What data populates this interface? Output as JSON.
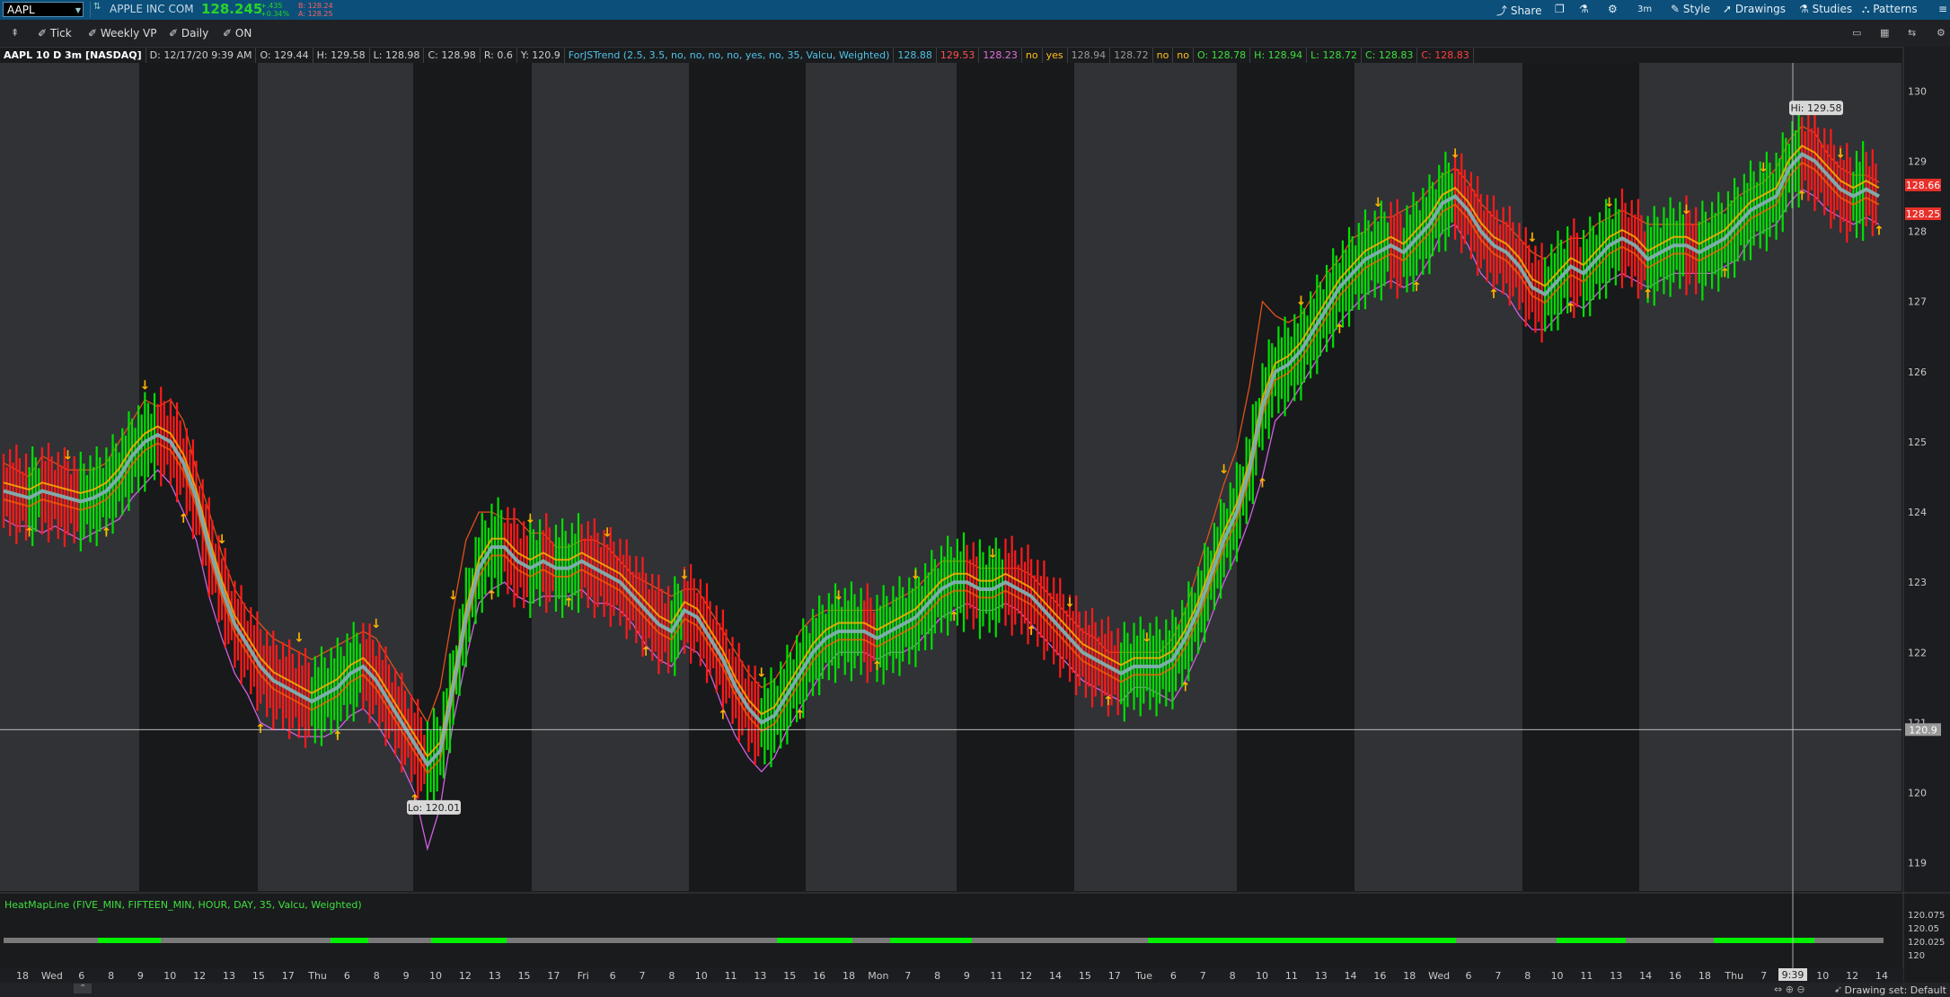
{
  "header": {
    "symbol": "AAPL",
    "company": "APPLE INC COM",
    "last_price": "128.245",
    "change": "+.435",
    "change_pct": "+0.34%",
    "bid": "B: 128.24",
    "ask": "A: 128.25",
    "buttons": [
      "Share",
      "Studies",
      "Patterns",
      "Drawings",
      "Style",
      "3m"
    ]
  },
  "toolbar": {
    "items": [
      "Tick",
      "Weekly VP",
      "Daily",
      "ON"
    ]
  },
  "info": {
    "items": [
      {
        "text": "AAPL 10 D 3m [NASDAQ]",
        "color": "#ffffff"
      },
      {
        "text": "D: 12/17/20 9:39 AM",
        "color": "#cfcfcf"
      },
      {
        "text": "O: 129.44",
        "color": "#cfcfcf"
      },
      {
        "text": "H: 129.58",
        "color": "#cfcfcf"
      },
      {
        "text": "L: 128.98",
        "color": "#cfcfcf"
      },
      {
        "text": "C: 128.98",
        "color": "#cfcfcf"
      },
      {
        "text": "R: 0.6",
        "color": "#cfcfcf"
      },
      {
        "text": "Y: 120.9",
        "color": "#cfcfcf"
      },
      {
        "text": "ForJSTrend (2.5, 3.5, no, no, no, no, yes, no, 35, Valcu, Weighted)",
        "color": "#4fc3e8"
      },
      {
        "text": "128.88",
        "color": "#4fc3e8"
      },
      {
        "text": "129.53",
        "color": "#ff5050"
      },
      {
        "text": "128.23",
        "color": "#e070e0"
      },
      {
        "text": "no",
        "color": "#ffc21a"
      },
      {
        "text": "yes",
        "color": "#ffc21a"
      },
      {
        "text": "128.94",
        "color": "#9a9a9a"
      },
      {
        "text": "128.72",
        "color": "#9a9a9a"
      },
      {
        "text": "no",
        "color": "#ffc21a"
      },
      {
        "text": "no",
        "color": "#ffc21a"
      },
      {
        "text": "O: 128.78",
        "color": "#3ee03e"
      },
      {
        "text": "H: 128.94",
        "color": "#3ee03e"
      },
      {
        "text": "L: 128.72",
        "color": "#3ee03e"
      },
      {
        "text": "C: 128.83",
        "color": "#3ee03e"
      },
      {
        "text": "C: 128.83",
        "color": "#ff4040"
      }
    ]
  },
  "chart_data": {
    "type": "line",
    "ylim": [
      118.6,
      130.4
    ],
    "yticks": [
      119,
      120,
      121,
      122,
      123,
      124,
      125,
      126,
      127,
      128,
      129,
      130
    ],
    "price_labels": [
      {
        "text": "128.66",
        "value": 128.66,
        "color": "#e8302a"
      },
      {
        "text": "128.25",
        "value": 128.25,
        "color": "#e8302a"
      },
      {
        "text": "120.9",
        "value": 120.9,
        "color": "#9a9a9a"
      }
    ],
    "crosshair_price": 120.9,
    "annotations": [
      {
        "text": "Hi: 129.58",
        "value": 129.58
      },
      {
        "text": "Lo: 120.01",
        "value": 120.01
      }
    ],
    "days": [
      "Wed",
      "Thu",
      "Fri",
      "Mon",
      "Tue",
      "Wed",
      "Thu"
    ],
    "x_ticks": [
      "18",
      "Wed",
      "6",
      "8",
      "9",
      "10",
      "12",
      "13",
      "15",
      "17",
      "Thu",
      "6",
      "8",
      "9",
      "10",
      "12",
      "13",
      "15",
      "17",
      "Fri",
      "6",
      "7",
      "8",
      "10",
      "11",
      "13",
      "15",
      "16",
      "18",
      "Mon",
      "7",
      "8",
      "9",
      "11",
      "12",
      "14",
      "15",
      "17",
      "Tue",
      "6",
      "7",
      "8",
      "10",
      "11",
      "13",
      "14",
      "16",
      "18",
      "Wed",
      "6",
      "7",
      "8",
      "10",
      "11",
      "13",
      "14",
      "16",
      "18",
      "Thu",
      "7",
      "8",
      "10",
      "12",
      "14"
    ],
    "x_time_label": "9:39",
    "close": [
      124.3,
      124.25,
      124.2,
      124.3,
      124.25,
      124.2,
      124.15,
      124.2,
      124.3,
      124.5,
      124.8,
      125.0,
      125.1,
      125.0,
      124.7,
      124.2,
      123.5,
      122.9,
      122.4,
      122.1,
      121.8,
      121.6,
      121.5,
      121.4,
      121.3,
      121.4,
      121.5,
      121.7,
      121.8,
      121.6,
      121.3,
      121.0,
      120.7,
      120.4,
      120.6,
      121.5,
      122.5,
      123.2,
      123.5,
      123.5,
      123.3,
      123.2,
      123.3,
      123.2,
      123.2,
      123.3,
      123.2,
      123.1,
      123.0,
      122.8,
      122.6,
      122.4,
      122.3,
      122.6,
      122.5,
      122.2,
      121.9,
      121.5,
      121.2,
      121.0,
      121.1,
      121.4,
      121.7,
      122.0,
      122.2,
      122.3,
      122.3,
      122.3,
      122.2,
      122.3,
      122.4,
      122.5,
      122.7,
      122.9,
      123.0,
      123.0,
      122.9,
      122.9,
      123.0,
      122.9,
      122.8,
      122.6,
      122.4,
      122.2,
      122.0,
      121.9,
      121.8,
      121.7,
      121.8,
      121.8,
      121.8,
      121.9,
      122.2,
      122.6,
      123.1,
      123.6,
      124.0,
      124.6,
      125.5,
      126.0,
      126.1,
      126.3,
      126.6,
      126.9,
      127.2,
      127.4,
      127.6,
      127.7,
      127.8,
      127.7,
      127.9,
      128.1,
      128.4,
      128.5,
      128.3,
      128.0,
      127.8,
      127.7,
      127.5,
      127.2,
      127.1,
      127.3,
      127.5,
      127.4,
      127.6,
      127.8,
      127.9,
      127.8,
      127.6,
      127.7,
      127.8,
      127.8,
      127.7,
      127.8,
      127.9,
      128.1,
      128.3,
      128.4,
      128.5,
      128.9,
      129.1,
      129.0,
      128.8,
      128.6,
      128.5,
      128.6,
      128.5
    ],
    "upper_band": [
      124.7,
      124.6,
      124.5,
      124.8,
      124.7,
      124.6,
      124.6,
      124.6,
      124.7,
      125.0,
      125.3,
      125.6,
      125.5,
      125.6,
      125.3,
      124.6,
      124.0,
      123.4,
      122.9,
      122.6,
      122.4,
      122.2,
      122.1,
      122.0,
      121.9,
      122.0,
      122.1,
      122.2,
      122.3,
      122.2,
      121.9,
      121.6,
      121.3,
      121.0,
      121.5,
      122.6,
      123.6,
      124.0,
      124.0,
      123.9,
      123.9,
      123.7,
      123.7,
      123.5,
      123.5,
      123.6,
      123.6,
      123.5,
      123.3,
      123.1,
      123.0,
      122.9,
      122.8,
      122.9,
      122.9,
      122.6,
      122.3,
      122.0,
      121.7,
      121.5,
      121.6,
      121.9,
      122.3,
      122.5,
      122.6,
      122.6,
      122.6,
      122.6,
      122.6,
      122.7,
      122.8,
      122.9,
      123.1,
      123.3,
      123.3,
      123.3,
      123.2,
      123.2,
      123.2,
      123.2,
      123.1,
      122.9,
      122.7,
      122.5,
      122.3,
      122.2,
      122.0,
      122.0,
      122.0,
      122.0,
      122.0,
      122.2,
      122.6,
      123.2,
      123.8,
      124.4,
      124.9,
      125.8,
      127.0,
      126.8,
      126.7,
      126.8,
      127.1,
      127.4,
      127.6,
      127.9,
      128.0,
      128.2,
      128.2,
      128.3,
      128.4,
      128.6,
      128.8,
      128.9,
      128.7,
      128.4,
      128.2,
      128.1,
      127.9,
      127.7,
      127.6,
      127.8,
      127.9,
      127.9,
      128.1,
      128.2,
      128.3,
      128.2,
      128.1,
      128.1,
      128.1,
      128.1,
      128.1,
      128.2,
      128.3,
      128.5,
      128.6,
      128.7,
      128.9,
      129.3,
      129.5,
      129.4,
      129.1,
      128.9,
      128.8,
      128.8,
      128.7
    ],
    "lower_band": [
      123.9,
      123.8,
      123.8,
      123.7,
      123.8,
      123.7,
      123.6,
      123.7,
      123.8,
      123.9,
      124.2,
      124.4,
      124.6,
      124.4,
      124.0,
      123.6,
      122.8,
      122.2,
      121.7,
      121.4,
      121.0,
      120.9,
      120.9,
      120.8,
      120.8,
      120.8,
      120.9,
      121.1,
      121.2,
      121.0,
      120.7,
      120.4,
      120.0,
      119.2,
      119.8,
      121.0,
      121.9,
      122.7,
      122.9,
      123.0,
      122.8,
      122.7,
      122.8,
      122.8,
      122.8,
      122.9,
      122.7,
      122.7,
      122.6,
      122.4,
      122.1,
      121.9,
      121.8,
      122.1,
      122.0,
      121.7,
      121.2,
      120.8,
      120.5,
      120.3,
      120.5,
      120.9,
      121.2,
      121.5,
      121.8,
      122.0,
      122.0,
      122.0,
      121.9,
      122.0,
      122.0,
      122.1,
      122.3,
      122.5,
      122.6,
      122.7,
      122.6,
      122.6,
      122.7,
      122.6,
      122.4,
      122.2,
      122.0,
      121.8,
      121.6,
      121.5,
      121.4,
      121.3,
      121.5,
      121.5,
      121.4,
      121.3,
      121.6,
      122.0,
      122.5,
      123.0,
      123.4,
      123.9,
      124.5,
      125.3,
      125.5,
      125.8,
      126.1,
      126.4,
      126.7,
      126.9,
      127.1,
      127.2,
      127.3,
      127.2,
      127.3,
      127.6,
      128.0,
      128.1,
      127.8,
      127.4,
      127.2,
      127.1,
      126.8,
      126.6,
      126.6,
      126.8,
      127.0,
      126.9,
      127.1,
      127.3,
      127.4,
      127.3,
      127.2,
      127.3,
      127.4,
      127.4,
      127.4,
      127.4,
      127.5,
      127.6,
      127.9,
      128.0,
      128.1,
      128.4,
      128.6,
      128.5,
      128.3,
      128.2,
      128.1,
      128.2,
      128.1
    ],
    "heatmap_ticks": [
      "120.075",
      "120.05",
      "120.025",
      "120"
    ]
  },
  "lower_study": {
    "label": "HeatMapLine (FIVE_MIN, FIFTEEN_MIN, HOUR, DAY, 35, Valcu, Weighted)"
  },
  "status": {
    "drawing_set": "Drawing set: Default"
  },
  "colors": {
    "up": "#00e000",
    "down": "#ff1a1a",
    "trend": "#7fb0b0",
    "upper": "#e0501a",
    "lower": "#d060e0",
    "arrows": "#ffb400",
    "heat_green": "#00f000",
    "heat_gray": "#7a7a7a"
  }
}
